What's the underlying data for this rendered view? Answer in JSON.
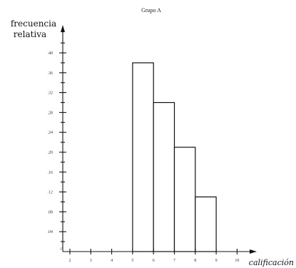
{
  "chart_data": {
    "type": "bar",
    "title": "Grupo A",
    "ylabel_lines": [
      "frecuencia",
      "relativa"
    ],
    "xlabel": "calificación",
    "x_ticks": [
      "2",
      "3",
      "4",
      "5",
      "6",
      "7",
      "8",
      "9",
      "10"
    ],
    "y_ticks": [
      ".04",
      ".08",
      ".12",
      ".16",
      ".20",
      ".24",
      ".28",
      ".32",
      ".36",
      ".40"
    ],
    "xlim": [
      2,
      10
    ],
    "ylim": [
      0,
      0.44
    ],
    "axis_break": "//",
    "grid": false,
    "bars": [
      {
        "from": 5,
        "to": 6,
        "value": 0.38
      },
      {
        "from": 6,
        "to": 7,
        "value": 0.3
      },
      {
        "from": 7,
        "to": 8,
        "value": 0.21
      },
      {
        "from": 8,
        "to": 9,
        "value": 0.11
      }
    ]
  }
}
